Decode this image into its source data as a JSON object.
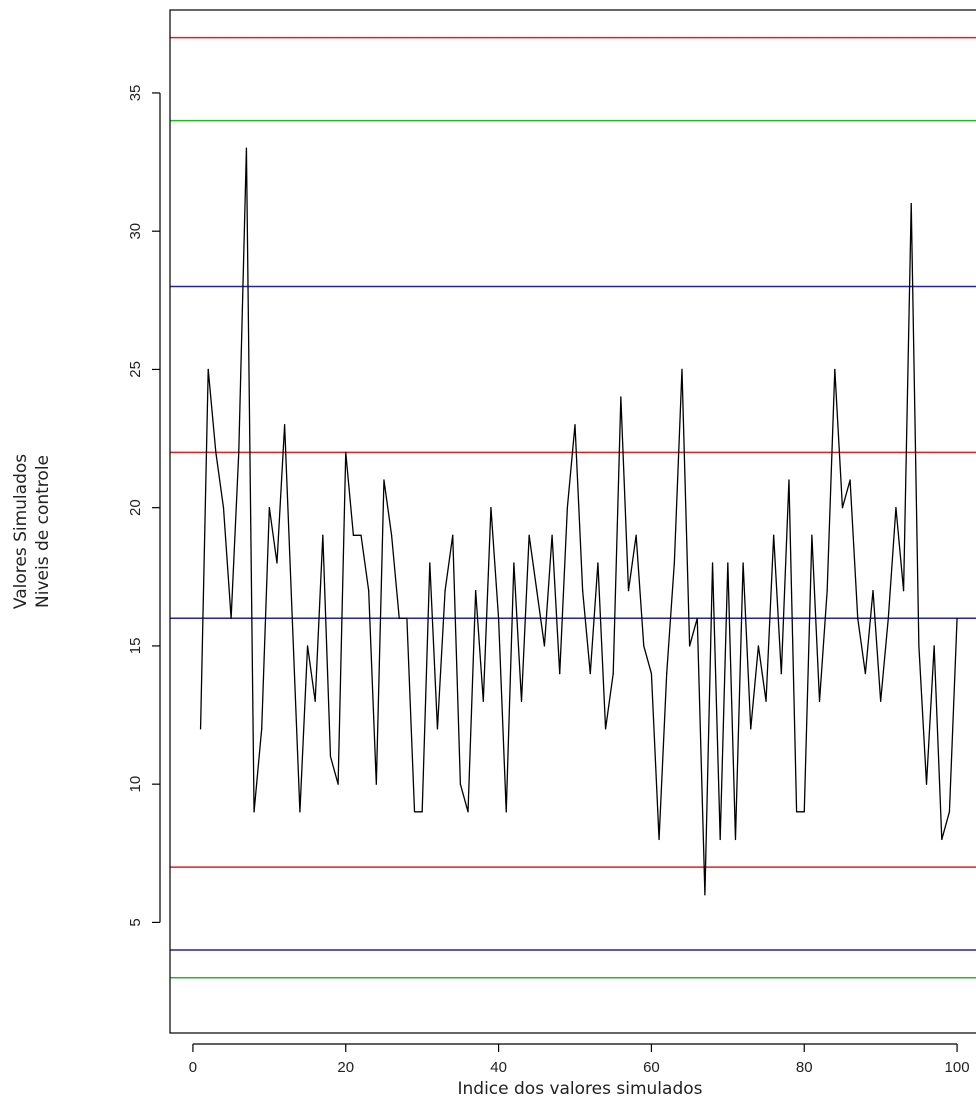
{
  "chart_data": {
    "type": "line",
    "title": "",
    "xlabel": "Indice dos valores simulados",
    "ylabel_lines": [
      "Valores Simulados",
      "Niveis de controle"
    ],
    "xlim": [
      -3,
      103
    ],
    "ylim": [
      1,
      38
    ],
    "x_ticks": [
      0,
      20,
      40,
      60,
      80,
      100
    ],
    "y_ticks": [
      5,
      10,
      15,
      20,
      25,
      30,
      35
    ],
    "grid": false,
    "series": [
      {
        "color": "#000000",
        "x": [
          1,
          2,
          3,
          4,
          5,
          6,
          7,
          8,
          9,
          10,
          11,
          12,
          13,
          14,
          15,
          16,
          17,
          18,
          19,
          20,
          21,
          22,
          23,
          24,
          25,
          26,
          27,
          28,
          29,
          30,
          31,
          32,
          33,
          34,
          35,
          36,
          37,
          38,
          39,
          40,
          41,
          42,
          43,
          44,
          45,
          46,
          47,
          48,
          49,
          50,
          51,
          52,
          53,
          54,
          55,
          56,
          57,
          58,
          59,
          60,
          61,
          62,
          63,
          64,
          65,
          66,
          67,
          68,
          69,
          70,
          71,
          72,
          73,
          74,
          75,
          76,
          77,
          78,
          79,
          80,
          81,
          82,
          83,
          84,
          85,
          86,
          87,
          88,
          89,
          90,
          91,
          92,
          93,
          94,
          95,
          96,
          97,
          98,
          99,
          100
        ],
        "y": [
          12,
          25,
          22,
          20,
          16,
          22,
          33,
          9,
          12,
          20,
          18,
          23,
          16,
          9,
          15,
          13,
          19,
          11,
          10,
          22,
          19,
          19,
          17,
          10,
          21,
          19,
          16,
          16,
          9,
          9,
          18,
          12,
          17,
          19,
          10,
          9,
          17,
          13,
          20,
          16,
          9,
          18,
          13,
          19,
          17,
          15,
          19,
          14,
          20,
          23,
          17,
          14,
          18,
          12,
          14,
          24,
          17,
          19,
          15,
          14,
          8,
          14,
          18,
          25,
          15,
          16,
          6,
          18,
          8,
          18,
          8,
          18,
          12,
          15,
          13,
          19,
          14,
          21,
          9,
          9,
          19,
          13,
          17,
          25,
          20,
          21,
          16,
          14,
          17,
          13,
          16,
          20,
          17,
          31,
          15,
          10,
          15,
          8,
          9,
          16
        ]
      }
    ],
    "reference_lines": [
      {
        "y": 37,
        "color": "#dd2222"
      },
      {
        "y": 34,
        "color": "#22bb22"
      },
      {
        "y": 28,
        "color": "#2222aa"
      },
      {
        "y": 22,
        "color": "#dd2222"
      },
      {
        "y": 16,
        "color": "#2222aa"
      },
      {
        "y": 7,
        "color": "#dd2222"
      },
      {
        "y": 4,
        "color": "#2222aa"
      },
      {
        "y": 3,
        "color": "#22bb22"
      }
    ]
  }
}
